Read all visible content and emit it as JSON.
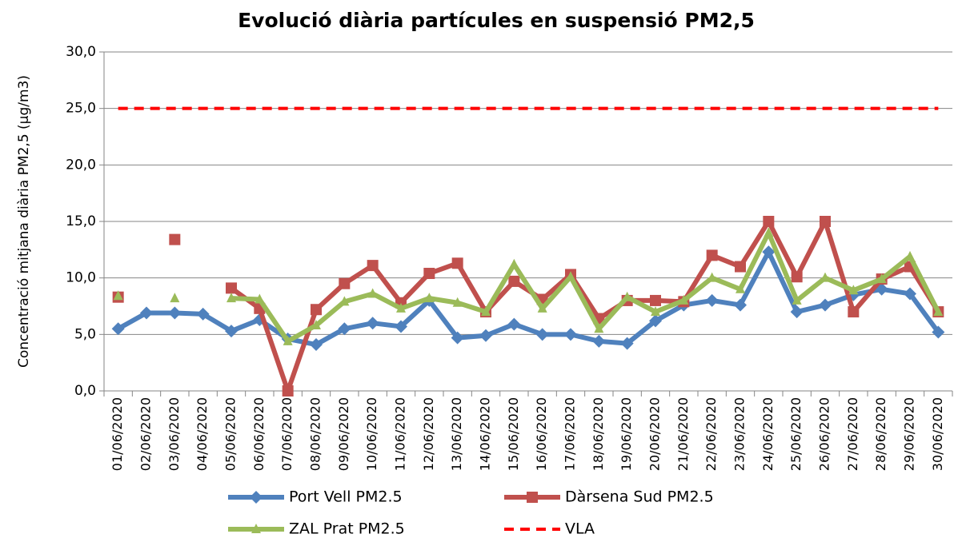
{
  "chart_data": {
    "type": "line",
    "title": "Evolució diària partícules en suspensió  PM2,5",
    "y_label": "Concentració mitjana diària PM2,5 (µg/m3)",
    "categories": [
      "01/06/2020",
      "02/06/2020",
      "03/06/2020",
      "04/06/2020",
      "05/06/2020",
      "06/06/2020",
      "07/06/2020",
      "08/06/2020",
      "09/06/2020",
      "10/06/2020",
      "11/06/2020",
      "12/06/2020",
      "13/06/2020",
      "14/06/2020",
      "15/06/2020",
      "16/06/2020",
      "17/06/2020",
      "18/06/2020",
      "19/06/2020",
      "20/06/2020",
      "21/06/2020",
      "22/06/2020",
      "23/06/2020",
      "24/06/2020",
      "25/06/2020",
      "26/06/2020",
      "27/06/2020",
      "28/06/2020",
      "29/06/2020",
      "30/06/2020"
    ],
    "series": [
      {
        "name": "Port Vell PM2.5",
        "color": "#4f81bd",
        "marker": "diamond",
        "values": [
          5.5,
          6.9,
          6.9,
          6.8,
          5.3,
          6.3,
          4.6,
          4.1,
          5.5,
          6.0,
          5.7,
          8.0,
          4.7,
          4.9,
          5.9,
          5.0,
          5.0,
          4.4,
          4.2,
          6.2,
          7.6,
          8.0,
          7.6,
          12.3,
          7.0,
          7.6,
          8.5,
          9.0,
          8.6,
          5.2
        ]
      },
      {
        "name": "Dàrsena Sud PM2.5",
        "color": "#c0504d",
        "marker": "square",
        "values": [
          8.3,
          null,
          13.4,
          null,
          9.1,
          7.3,
          0.0,
          7.2,
          9.5,
          11.1,
          7.8,
          10.4,
          11.3,
          7.0,
          9.7,
          8.1,
          10.3,
          6.4,
          8.0,
          8.0,
          7.9,
          12.0,
          11.0,
          15.0,
          10.1,
          15.0,
          7.0,
          9.9,
          11.0,
          7.0
        ]
      },
      {
        "name": "ZAL Prat PM2.5",
        "color": "#9bbb59",
        "marker": "triangle",
        "values": [
          8.4,
          null,
          8.2,
          null,
          8.2,
          8.1,
          4.4,
          5.8,
          7.9,
          8.6,
          7.3,
          8.2,
          7.8,
          7.0,
          11.2,
          7.3,
          10.1,
          5.5,
          8.3,
          7.0,
          8.0,
          10.0,
          9.0,
          14.0,
          8.0,
          10.0,
          8.9,
          9.9,
          11.9,
          7.0
        ]
      },
      {
        "name": "VLA",
        "color": "#ff0000",
        "marker": "none",
        "dashed": true,
        "values": [
          25,
          25,
          25,
          25,
          25,
          25,
          25,
          25,
          25,
          25,
          25,
          25,
          25,
          25,
          25,
          25,
          25,
          25,
          25,
          25,
          25,
          25,
          25,
          25,
          25,
          25,
          25,
          25,
          25,
          25
        ]
      }
    ],
    "ylim": [
      0,
      30
    ],
    "yticks": [
      {
        "value": 0,
        "label": "0,0"
      },
      {
        "value": 5,
        "label": "5,0"
      },
      {
        "value": 10,
        "label": "10,0"
      },
      {
        "value": 15,
        "label": "15,0"
      },
      {
        "value": 20,
        "label": "20,0"
      },
      {
        "value": 25,
        "label": "25,0"
      },
      {
        "value": 30,
        "label": "30,0"
      }
    ],
    "grid": true
  }
}
